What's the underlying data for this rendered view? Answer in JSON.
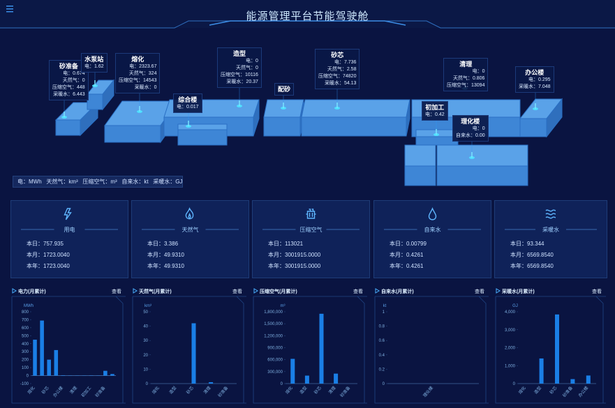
{
  "header": {
    "title": "能源管理平台节能驾驶舱"
  },
  "buildings": [
    {
      "name": "砂准备",
      "readings": [
        {
          "label": "电：",
          "value": "0.674"
        },
        {
          "label": "天然气：",
          "value": "0"
        },
        {
          "label": "压缩空气：",
          "value": "448"
        },
        {
          "label": "采暖水：",
          "value": "6.443"
        }
      ]
    },
    {
      "name": "水泵站",
      "readings": [
        {
          "label": "电：",
          "value": "1.62"
        }
      ]
    },
    {
      "name": "熔化",
      "readings": [
        {
          "label": "电：",
          "value": "2323.67"
        },
        {
          "label": "天然气：",
          "value": "324"
        },
        {
          "label": "压缩空气：",
          "value": "14543"
        },
        {
          "label": "采暖水：",
          "value": "0"
        }
      ]
    },
    {
      "name": "综合楼",
      "readings": [
        {
          "label": "电：",
          "value": "0.017"
        }
      ]
    },
    {
      "name": "造型",
      "readings": [
        {
          "label": "电：",
          "value": "0"
        },
        {
          "label": "天然气：",
          "value": "0"
        },
        {
          "label": "压缩空气：",
          "value": "10116"
        },
        {
          "label": "采暖水：",
          "value": "20.37"
        }
      ]
    },
    {
      "name": "配砂",
      "readings": []
    },
    {
      "name": "砂芯",
      "readings": [
        {
          "label": "电：",
          "value": "7.736"
        },
        {
          "label": "天然气：",
          "value": "2.58"
        },
        {
          "label": "压缩空气：",
          "value": "74820"
        },
        {
          "label": "采暖水：",
          "value": "54.13"
        }
      ]
    },
    {
      "name": "清理",
      "readings": [
        {
          "label": "电：",
          "value": "0"
        },
        {
          "label": "天然气：",
          "value": "0.806"
        },
        {
          "label": "压缩空气：",
          "value": "13094"
        }
      ]
    },
    {
      "name": "办公楼",
      "readings": [
        {
          "label": "电：",
          "value": "0.295"
        },
        {
          "label": "采暖水：",
          "value": "7.048"
        }
      ]
    },
    {
      "name": "初加工",
      "readings": [
        {
          "label": "电：",
          "value": "0.42"
        }
      ]
    },
    {
      "name": "理化楼",
      "readings": [
        {
          "label": "电：",
          "value": "0"
        },
        {
          "label": "自来水：",
          "value": "0.00"
        }
      ]
    }
  ],
  "units": "电：MWh   天然气：km³   压缩空气：m³   自来水：kt   采暖水：GJ",
  "cards": [
    {
      "title": "用电",
      "rows": [
        {
          "label": "本日：",
          "value": "757.935"
        },
        {
          "label": "本月：",
          "value": "1723.0040"
        },
        {
          "label": "本年：",
          "value": "1723.0040"
        }
      ]
    },
    {
      "title": "天然气",
      "rows": [
        {
          "label": "本日：",
          "value": "3.386"
        },
        {
          "label": "本月：",
          "value": "49.9310"
        },
        {
          "label": "本年：",
          "value": "49.9310"
        }
      ]
    },
    {
      "title": "压缩空气",
      "rows": [
        {
          "label": "本日：",
          "value": "113021"
        },
        {
          "label": "本月：",
          "value": "3001915.0000"
        },
        {
          "label": "本年：",
          "value": "3001915.0000"
        }
      ]
    },
    {
      "title": "自来水",
      "rows": [
        {
          "label": "本日：",
          "value": "0.00799"
        },
        {
          "label": "本月：",
          "value": "0.4261"
        },
        {
          "label": "本年：",
          "value": "0.4261"
        }
      ]
    },
    {
      "title": "采暖水",
      "rows": [
        {
          "label": "本日：",
          "value": "93.344"
        },
        {
          "label": "本月：",
          "value": "6569.8540"
        },
        {
          "label": "本年：",
          "value": "6569.8540"
        }
      ]
    }
  ],
  "chart_data": [
    {
      "type": "bar",
      "title": "电力(月累计)",
      "button": "查看",
      "unit": "MWh",
      "color": "#1a7fe6",
      "categories": [
        "熔化",
        null,
        "砂芯",
        null,
        "办公楼",
        null,
        "清理",
        null,
        "初加工",
        null,
        "砂准备",
        null
      ],
      "values": [
        450,
        690,
        200,
        320,
        5,
        2,
        2,
        2,
        3,
        2,
        60,
        20
      ],
      "ylim": [
        -100,
        800
      ],
      "yticks": [
        -100,
        0,
        100,
        200,
        300,
        400,
        500,
        600,
        700,
        800
      ]
    },
    {
      "type": "bar",
      "title": "天然气(月累计)",
      "button": "查看",
      "unit": "km³",
      "color": "#1a7fe6",
      "categories": [
        "熔化",
        "造型",
        "砂芯",
        "清理",
        "砂准备"
      ],
      "values": [
        0,
        0,
        42,
        1,
        0
      ],
      "ylim": [
        0,
        50
      ],
      "yticks": [
        0,
        10,
        20,
        30,
        40,
        50
      ]
    },
    {
      "type": "bar",
      "title": "压缩空气(月累计)",
      "button": "查看",
      "unit": "m³",
      "color": "#1a7fe6",
      "categories": [
        "熔化",
        "造型",
        "砂芯",
        "清理",
        "砂准备"
      ],
      "values": [
        620000,
        200000,
        1750000,
        250000,
        0
      ],
      "ylim": [
        0,
        1800000
      ],
      "yticks": [
        0,
        {
          "value": 300000,
          "label": "300,000"
        },
        {
          "value": 600000,
          "label": "600,000"
        },
        {
          "value": 900000,
          "label": "900,000"
        },
        {
          "value": 1200000,
          "label": "1,200,000"
        },
        {
          "value": 1500000,
          "label": "1,500,000"
        },
        {
          "value": 1800000,
          "label": "1,800,000"
        }
      ]
    },
    {
      "type": "bar",
      "title": "自来水(月累计)",
      "button": "查看",
      "unit": "kt",
      "color": "#1a7fe6",
      "categories": [
        "理化楼"
      ],
      "values": [
        0
      ],
      "ylim": [
        0,
        1
      ],
      "yticks": [
        0,
        0.2,
        0.4,
        0.6,
        0.8,
        1
      ]
    },
    {
      "type": "bar",
      "title": "采暖水(月累计)",
      "button": "查看",
      "unit": "GJ",
      "color": "#1a7fe6",
      "categories": [
        "熔化",
        "造型",
        "砂芯",
        "砂准备",
        "办公楼"
      ],
      "values": [
        0,
        1400,
        3850,
        250,
        450
      ],
      "ylim": [
        0,
        4000
      ],
      "yticks": [
        0,
        {
          "value": 1000,
          "label": "1,000"
        },
        {
          "value": 2000,
          "label": "2,000"
        },
        {
          "value": 3000,
          "label": "3,000"
        },
        {
          "value": 4000,
          "label": "4,000"
        }
      ]
    }
  ]
}
